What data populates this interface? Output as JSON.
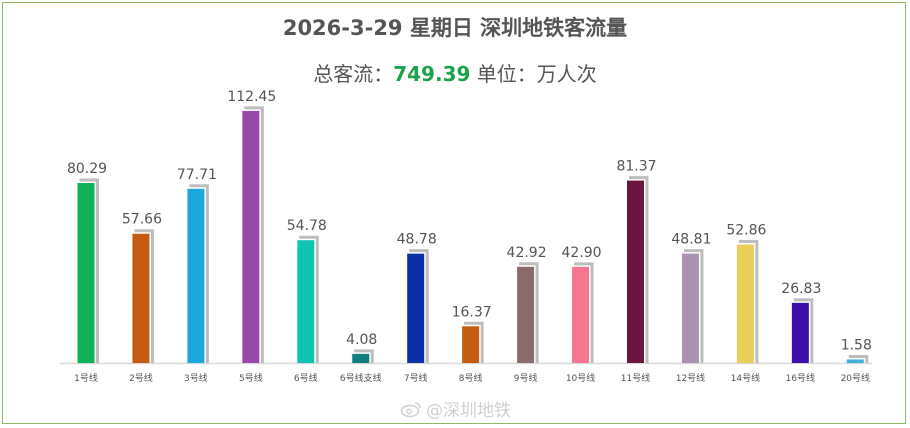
{
  "header": {
    "title": "2026-3-29 星期日  深圳地铁客流量",
    "subtitle_prefix": "总客流：",
    "total": "749.39",
    "subtitle_suffix": " 单位：万人次"
  },
  "watermark": {
    "text": "@深圳地铁",
    "icon": "weibo-icon"
  },
  "colors": {
    "shadow": "#bdbdbd",
    "baseline": "#d9d9d9",
    "total_highlight": "#1aa34a"
  },
  "chart_data": {
    "type": "bar",
    "categories": [
      "1号线",
      "2号线",
      "3号线",
      "5号线",
      "6号线",
      "6号线支线",
      "7号线",
      "8号线",
      "9号线",
      "10号线",
      "11号线",
      "12号线",
      "14号线",
      "16号线",
      "20号线"
    ],
    "values": [
      80.29,
      57.66,
      77.71,
      112.45,
      54.78,
      4.08,
      48.78,
      16.37,
      42.92,
      42.9,
      81.37,
      48.81,
      52.86,
      26.83,
      1.58
    ],
    "labels": [
      "80.29",
      "57.66",
      "77.71",
      "112.45",
      "54.78",
      "4.08",
      "48.78",
      "16.37",
      "42.92",
      "42.90",
      "81.37",
      "48.81",
      "52.86",
      "26.83",
      "1.58"
    ],
    "bar_colors": [
      "#13b05a",
      "#c55a11",
      "#1ba8dc",
      "#9b48ad",
      "#0fc4b0",
      "#0f7f7f",
      "#0a2fa8",
      "#c55a11",
      "#8b6a6a",
      "#f7768f",
      "#6b1540",
      "#a992b0",
      "#ebce5a",
      "#3b0fa8",
      "#40b0d8"
    ],
    "ylim": [
      0,
      120
    ],
    "grid": false,
    "legend": "none"
  }
}
